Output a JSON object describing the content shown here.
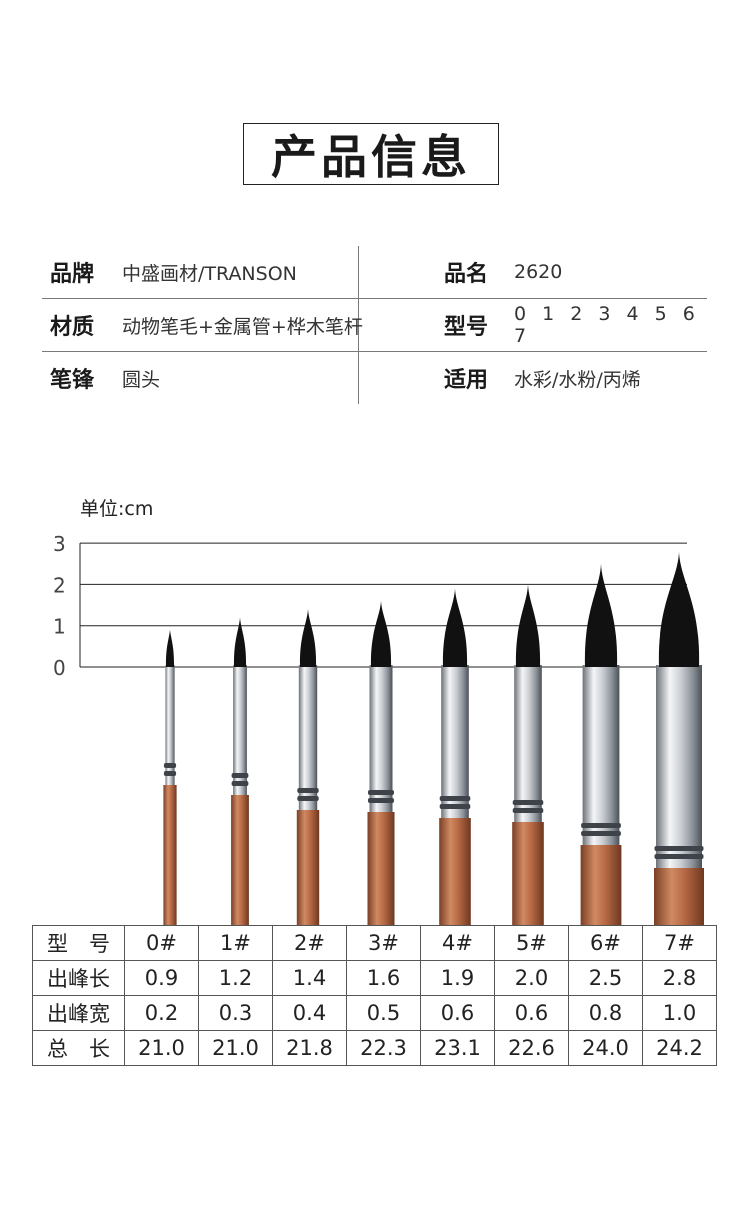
{
  "title": "产品信息",
  "info": {
    "brand_label": "品牌",
    "brand_value": "中盛画材/TRANSON",
    "name_label": "品名",
    "name_value": "2620",
    "material_label": "材质",
    "material_value": "动物笔毛+金属管+桦木笔杆",
    "model_label": "型号",
    "model_value": "0 1 2 3 4 5 6 7",
    "tip_label": "笔锋",
    "tip_value": "圆头",
    "usage_label": "适用",
    "usage_value": "水彩/水粉/丙烯"
  },
  "scale": {
    "unit_label": "单位:cm",
    "ticks": [
      "3",
      "2",
      "1",
      "0"
    ]
  },
  "colors": {
    "bristle": "#111111",
    "ferrule": "#c9cdd2",
    "handle": "#b86a45"
  },
  "table": {
    "header": [
      "型　号",
      "0#",
      "1#",
      "2#",
      "3#",
      "4#",
      "5#",
      "6#",
      "7#"
    ],
    "rows": [
      [
        "出峰长",
        "0.9",
        "1.2",
        "1.4",
        "1.6",
        "1.9",
        "2.0",
        "2.5",
        "2.8"
      ],
      [
        "出峰宽",
        "0.2",
        "0.3",
        "0.4",
        "0.5",
        "0.6",
        "0.6",
        "0.8",
        "1.0"
      ],
      [
        "总　长",
        "21.0",
        "21.0",
        "21.8",
        "22.3",
        "23.1",
        "22.6",
        "24.0",
        "24.2"
      ]
    ]
  }
}
